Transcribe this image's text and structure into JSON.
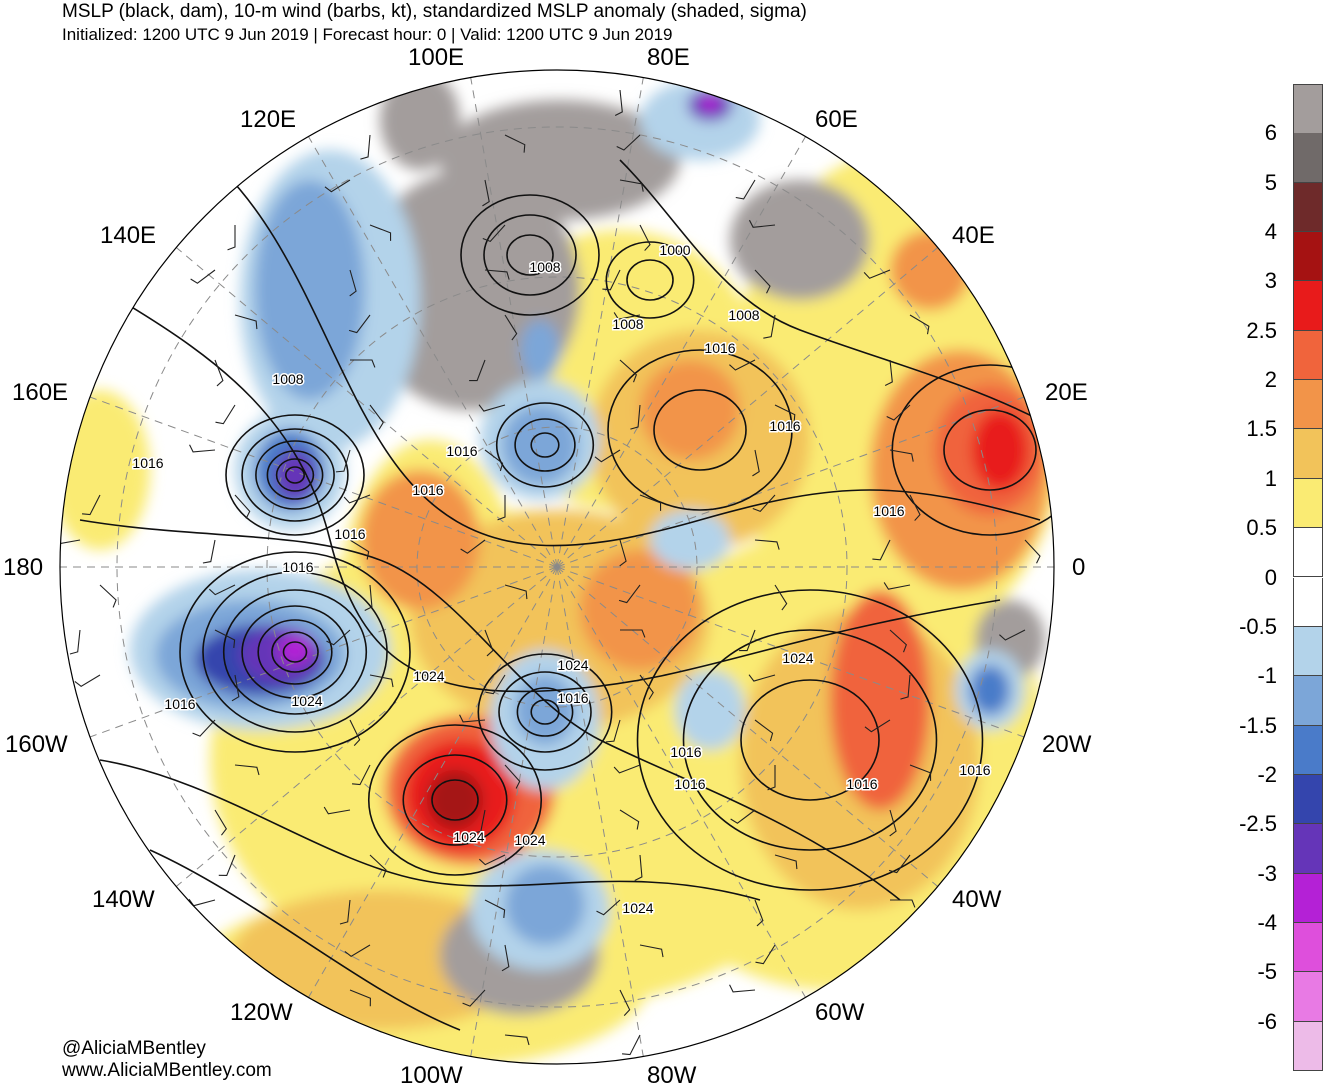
{
  "title": "MSLP (black, dam), 10-m wind (barbs, kt), standardized MSLP anomaly (shaded, sigma)",
  "subtitle": "Initialized: 1200 UTC 9 Jun 2019 | Forecast hour: 0 | Valid: 1200 UTC 9 Jun 2019",
  "longitude_labels": [
    "100E",
    "80E",
    "60E",
    "40E",
    "20E",
    "0",
    "20W",
    "40W",
    "60W",
    "80W",
    "100W",
    "120W",
    "140W",
    "160W",
    "180",
    "160E",
    "140E",
    "120E"
  ],
  "isobar_labels": [
    "1000",
    "1008",
    "1008",
    "1008",
    "1008",
    "1016",
    "1016",
    "1016",
    "1016",
    "1016",
    "1016",
    "1016",
    "1016",
    "1016",
    "1016",
    "1016",
    "1016",
    "1016",
    "1016",
    "1024",
    "1024",
    "1024",
    "1024",
    "1024",
    "1024",
    "1024"
  ],
  "colorbar": {
    "labels": [
      "6",
      "5",
      "4",
      "3",
      "2.5",
      "2",
      "1.5",
      "1",
      "0.5",
      "0",
      "-0.5",
      "-1",
      "-1.5",
      "-2",
      "-2.5",
      "-3",
      "-4",
      "-5",
      "-6"
    ],
    "colors": [
      "#a39d9c",
      "#706a69",
      "#6e2a2a",
      "#a51212",
      "#e81b1b",
      "#f0643c",
      "#f29449",
      "#f2c35a",
      "#faeb73",
      "#ffffff",
      "#ffffff",
      "#b3d3ea",
      "#7ca6d8",
      "#4a7bc9",
      "#3445ad",
      "#6535b8",
      "#b421d6",
      "#de4fdc",
      "#e87ae4",
      "#edbbe8"
    ]
  },
  "credit": {
    "handle": "@AliciaMBentley",
    "website": "www.AliciaMBentley.com"
  }
}
